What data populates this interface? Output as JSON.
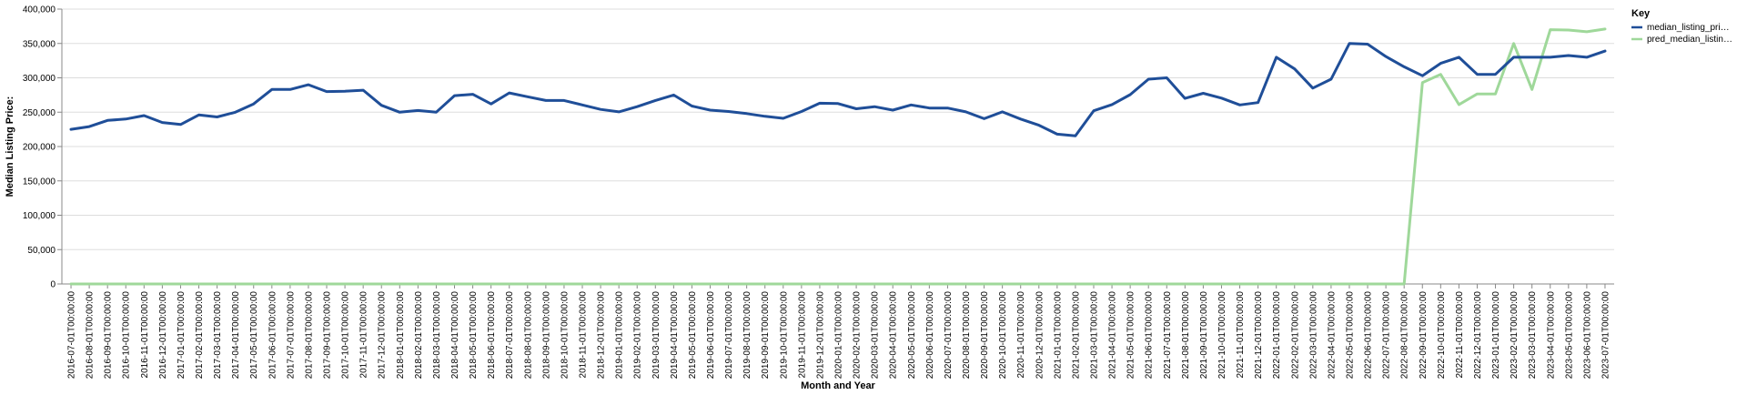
{
  "colors": {
    "series_1": "#1f4e98",
    "series_2": "#9fd89a",
    "grid": "#dddddd",
    "axis": "#888888"
  },
  "chart_data": {
    "type": "line",
    "xlabel": "Month and Year",
    "ylabel": "Median Listing Price:",
    "ylim": [
      0,
      400000
    ],
    "yticks": [
      "0",
      "50,000",
      "100,000",
      "150,000",
      "200,000",
      "250,000",
      "300,000",
      "350,000",
      "400,000"
    ],
    "grid": true,
    "legend": {
      "title": "Key",
      "placement": "right",
      "entries": [
        "median_listing_pri…",
        "pred_median_listin…"
      ]
    },
    "x": [
      "2016-07-01T00:00:00",
      "2016-08-01T00:00:00",
      "2016-09-01T00:00:00",
      "2016-10-01T00:00:00",
      "2016-11-01T00:00:00",
      "2016-12-01T00:00:00",
      "2017-01-01T00:00:00",
      "2017-02-01T00:00:00",
      "2017-03-01T00:00:00",
      "2017-04-01T00:00:00",
      "2017-05-01T00:00:00",
      "2017-06-01T00:00:00",
      "2017-07-01T00:00:00",
      "2017-08-01T00:00:00",
      "2017-09-01T00:00:00",
      "2017-10-01T00:00:00",
      "2017-11-01T00:00:00",
      "2017-12-01T00:00:00",
      "2018-01-01T00:00:00",
      "2018-02-01T00:00:00",
      "2018-03-01T00:00:00",
      "2018-04-01T00:00:00",
      "2018-05-01T00:00:00",
      "2018-06-01T00:00:00",
      "2018-07-01T00:00:00",
      "2018-08-01T00:00:00",
      "2018-09-01T00:00:00",
      "2018-10-01T00:00:00",
      "2018-11-01T00:00:00",
      "2018-12-01T00:00:00",
      "2019-01-01T00:00:00",
      "2019-02-01T00:00:00",
      "2019-03-01T00:00:00",
      "2019-04-01T00:00:00",
      "2019-05-01T00:00:00",
      "2019-06-01T00:00:00",
      "2019-07-01T00:00:00",
      "2019-08-01T00:00:00",
      "2019-09-01T00:00:00",
      "2019-10-01T00:00:00",
      "2019-11-01T00:00:00",
      "2019-12-01T00:00:00",
      "2020-01-01T00:00:00",
      "2020-02-01T00:00:00",
      "2020-03-01T00:00:00",
      "2020-04-01T00:00:00",
      "2020-05-01T00:00:00",
      "2020-06-01T00:00:00",
      "2020-07-01T00:00:00",
      "2020-08-01T00:00:00",
      "2020-09-01T00:00:00",
      "2020-10-01T00:00:00",
      "2020-11-01T00:00:00",
      "2020-12-01T00:00:00",
      "2021-01-01T00:00:00",
      "2021-02-01T00:00:00",
      "2021-03-01T00:00:00",
      "2021-04-01T00:00:00",
      "2021-05-01T00:00:00",
      "2021-06-01T00:00:00",
      "2021-07-01T00:00:00",
      "2021-08-01T00:00:00",
      "2021-09-01T00:00:00",
      "2021-10-01T00:00:00",
      "2021-11-01T00:00:00",
      "2021-12-01T00:00:00",
      "2022-01-01T00:00:00",
      "2022-02-01T00:00:00",
      "2022-03-01T00:00:00",
      "2022-04-01T00:00:00",
      "2022-05-01T00:00:00",
      "2022-06-01T00:00:00",
      "2022-07-01T00:00:00",
      "2022-08-01T00:00:00",
      "2022-09-01T00:00:00",
      "2022-10-01T00:00:00",
      "2022-11-01T00:00:00",
      "2022-12-01T00:00:00",
      "2023-01-01T00:00:00",
      "2023-02-01T00:00:00",
      "2023-03-01T00:00:00",
      "2023-04-01T00:00:00",
      "2023-05-01T00:00:00",
      "2023-06-01T00:00:00",
      "2023-07-01T00:00:00"
    ],
    "series": [
      {
        "name": "median_listing_pri…",
        "values": [
          225000,
          229000,
          238000,
          240000,
          245000,
          235000,
          232000,
          246000,
          243000,
          250000,
          262000,
          283000,
          283000,
          290000,
          280000,
          280500,
          282000,
          260000,
          250000,
          252500,
          250000,
          274000,
          276000,
          262000,
          278000,
          272500,
          267000,
          267000,
          260500,
          254000,
          250500,
          258000,
          267000,
          275000,
          259000,
          253000,
          251000,
          248000,
          244000,
          241000,
          251000,
          263000,
          262500,
          255000,
          258000,
          253000,
          260500,
          256000,
          256000,
          250500,
          240500,
          250500,
          240000,
          231000,
          218000,
          215500,
          252000,
          261000,
          275500,
          298000,
          300000,
          270000,
          277500,
          270500,
          260500,
          264000,
          330000,
          313000,
          285000,
          298000,
          350000,
          349000,
          331000,
          316000,
          303000,
          321000,
          330000,
          305000,
          305000,
          330000,
          330000,
          330000,
          332500,
          330000,
          339000
        ]
      },
      {
        "name": "pred_median_listin…",
        "values": [
          0,
          0,
          0,
          0,
          0,
          0,
          0,
          0,
          0,
          0,
          0,
          0,
          0,
          0,
          0,
          0,
          0,
          0,
          0,
          0,
          0,
          0,
          0,
          0,
          0,
          0,
          0,
          0,
          0,
          0,
          0,
          0,
          0,
          0,
          0,
          0,
          0,
          0,
          0,
          0,
          0,
          0,
          0,
          0,
          0,
          0,
          0,
          0,
          0,
          0,
          0,
          0,
          0,
          0,
          0,
          0,
          0,
          0,
          0,
          0,
          0,
          0,
          0,
          0,
          0,
          0,
          0,
          0,
          0,
          0,
          0,
          0,
          0,
          0,
          293000,
          305000,
          261000,
          276500,
          276500,
          350000,
          283000,
          370000,
          369500,
          367000,
          371000
        ]
      }
    ]
  }
}
